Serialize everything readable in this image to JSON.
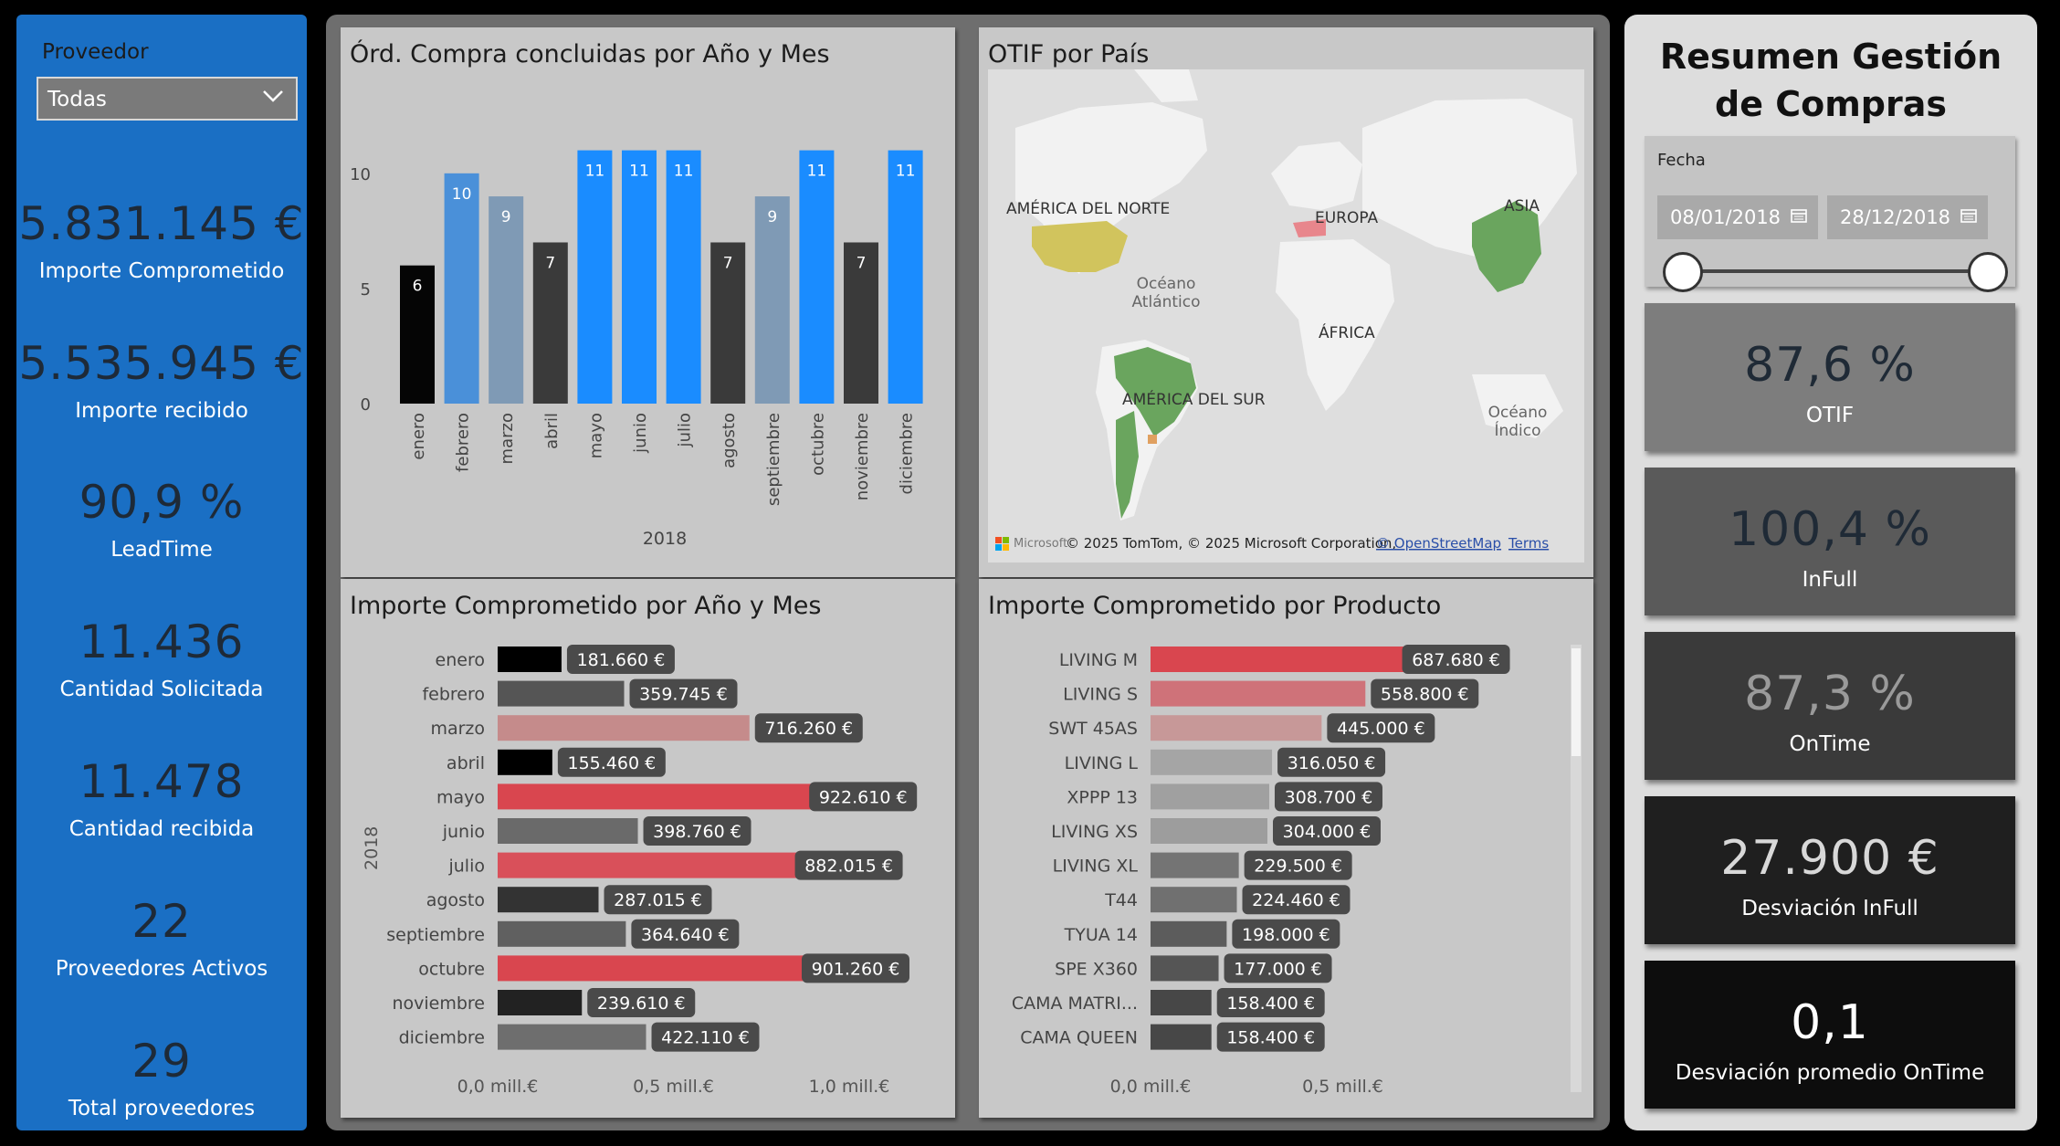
{
  "filters": {
    "proveedor_label": "Proveedor",
    "proveedor_value": "Todas"
  },
  "left_kpis": [
    {
      "value": "5.831.145 €",
      "label": "Importe Comprometido"
    },
    {
      "value": "5.535.945 €",
      "label": "Importe recibido"
    },
    {
      "value": "90,9 %",
      "label": "LeadTime"
    },
    {
      "value": "11.436",
      "label": "Cantidad Solicitada"
    },
    {
      "value": "11.478",
      "label": "Cantidad recibida"
    },
    {
      "value": "22",
      "label": "Proveedores Activos"
    },
    {
      "value": "29",
      "label": "Total proveedores"
    }
  ],
  "map": {
    "title": "OTIF por País",
    "labels": {
      "north_america": "AMÉRICA DEL NORTE",
      "europe": "EUROPA",
      "asia": "ASIA",
      "atlantic": "Océano\nAtlántico",
      "africa": "ÁFRICA",
      "south_america": "AMÉRICA DEL SUR",
      "indian": "Océano\nÍndico"
    },
    "attribution": "© 2025 TomTom, © 2025 Microsoft Corporation,",
    "osm_link": "© OpenStreetMap",
    "terms_link": "Terms",
    "ms_logo": "Microsoft"
  },
  "right_panel": {
    "title_line1": "Resumen Gestión",
    "title_line2": "de Compras",
    "date_label": "Fecha",
    "date_start": "08/01/2018",
    "date_end": "28/12/2018",
    "cards": [
      {
        "value": "87,6 %",
        "label": "OTIF",
        "bg": "#7d7d7d",
        "color": "#1f2a36"
      },
      {
        "value": "100,4 %",
        "label": "InFull",
        "bg": "#5a5a5a",
        "color": "#1f2a36"
      },
      {
        "value": "87,3 %",
        "label": "OnTime",
        "bg": "#3a3a3a",
        "color": "#9a9a9a"
      },
      {
        "value": "27.900 €",
        "label": "Desviación InFull",
        "bg": "#1f1f1f",
        "color": "#d8d8d8"
      },
      {
        "value": "0,1",
        "label": "Desviación promedio OnTime",
        "bg": "#0d0d0d",
        "color": "#ffffff"
      }
    ]
  },
  "chart_data": [
    {
      "type": "bar",
      "title": "Órd. Compra concluidas por Año y Mes",
      "categories": [
        "enero",
        "febrero",
        "marzo",
        "abril",
        "mayo",
        "junio",
        "julio",
        "agosto",
        "septiembre",
        "octubre",
        "noviembre",
        "diciembre"
      ],
      "values": [
        6,
        10,
        9,
        7,
        11,
        11,
        11,
        7,
        9,
        11,
        7,
        11
      ],
      "colors": [
        "#050505",
        "#4a90d9",
        "#7f9ab5",
        "#3a3a3a",
        "#1a8cff",
        "#1a8cff",
        "#1a8cff",
        "#3a3a3a",
        "#7f9ab5",
        "#1a8cff",
        "#3a3a3a",
        "#1a8cff"
      ],
      "yticks": [
        "0",
        "5",
        "10"
      ],
      "ylim": [
        0,
        11.5
      ],
      "group_label": "2018"
    },
    {
      "type": "bar",
      "orientation": "horizontal",
      "title": "Importe Comprometido por Año y Mes",
      "categories": [
        "enero",
        "febrero",
        "marzo",
        "abril",
        "mayo",
        "junio",
        "julio",
        "agosto",
        "septiembre",
        "octubre",
        "noviembre",
        "diciembre"
      ],
      "values": [
        181660,
        359745,
        716260,
        155460,
        922610,
        398760,
        882015,
        287015,
        364640,
        901260,
        239610,
        422110
      ],
      "data_labels": [
        "181.660 €",
        "359.745 €",
        "716.260 €",
        "155.460 €",
        "922.610 €",
        "398.760 €",
        "882.015 €",
        "287.015 €",
        "364.640 €",
        "901.260 €",
        "239.610 €",
        "422.110 €"
      ],
      "colors": [
        "#000000",
        "#555555",
        "#c58b8b",
        "#000000",
        "#d9464f",
        "#6a6a6a",
        "#d9505a",
        "#333333",
        "#606060",
        "#d9464f",
        "#222222",
        "#6e6e6e"
      ],
      "group_label": "2018",
      "xticks": [
        "0,0 mill.€",
        "0,5 mill.€",
        "1,0 mill.€"
      ],
      "xlim": [
        0,
        1000000
      ]
    },
    {
      "type": "bar",
      "orientation": "horizontal",
      "title": "Importe Comprometido por Producto",
      "categories": [
        "LIVING M",
        "LIVING S",
        "SWT 45AS",
        "LIVING L",
        "XPPP 13",
        "LIVING XS",
        "LIVING XL",
        "T44",
        "TYUA 14",
        "SPE X360",
        "CAMA MATRI...",
        "CAMA QUEEN"
      ],
      "values": [
        687680,
        558800,
        445000,
        316050,
        308700,
        304000,
        229500,
        224460,
        198000,
        177000,
        158400,
        158400
      ],
      "data_labels": [
        "687.680 €",
        "558.800 €",
        "445.000 €",
        "316.050 €",
        "308.700 €",
        "304.000 €",
        "229.500 €",
        "224.460 €",
        "198.000 €",
        "177.000 €",
        "158.400 €",
        "158.400 €"
      ],
      "colors": [
        "#d9464f",
        "#cf7279",
        "#c79898",
        "#a5a5a5",
        "#a0a0a0",
        "#9d9d9d",
        "#747474",
        "#707070",
        "#5c5c5c",
        "#555555",
        "#474747",
        "#474747"
      ],
      "xticks": [
        "0,0 mill.€",
        "0,5 mill.€"
      ],
      "xlim": [
        0,
        760000
      ]
    }
  ]
}
